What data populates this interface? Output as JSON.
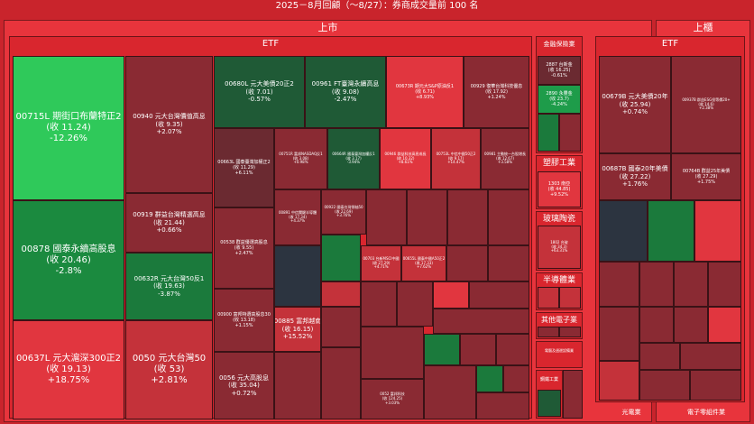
{
  "title": "2025－8月回顧（～8/27）：券商成交量前 100 名",
  "markets": {
    "listed": "上市",
    "otc": "上櫃"
  },
  "sectors": {
    "etf": "ETF",
    "etf2": "ETF",
    "finance": "金融保險業",
    "plastic": "塑膠工業",
    "glass": "玻璃陶瓷",
    "semi": "半導體業",
    "other_elec": "其他電子業",
    "computer": "電腦及週邊設備業",
    "steel": "鋼鐵工業",
    "optoelec": "光電業",
    "electronic_parts": "電子零組件業"
  },
  "big": [
    {
      "code": "00715L 期街口布蘭特正2",
      "close": "(收 11.24)",
      "chg": "-12.26%"
    },
    {
      "code": "00878 國泰永續高股息",
      "close": "(收 20.46)",
      "chg": "-2.8%"
    },
    {
      "code": "00637L 元大滬深300正2",
      "close": "(收 19.13)",
      "chg": "+18.75%"
    },
    {
      "code": "00940 元大台灣價值高息",
      "close": "(收 9.35)",
      "chg": "+2.07%"
    },
    {
      "code": "00919 群益台灣精選高息",
      "close": "(收 21.44)",
      "chg": "+0.66%"
    },
    {
      "code": "00632R 元大台灣50反1",
      "close": "(收 19.63)",
      "chg": "-3.87%"
    },
    {
      "code": "0050 元大台灣50",
      "close": "(收 53)",
      "chg": "+2.81%"
    },
    {
      "code": "00680L 元大美債20正2",
      "close": "(收 7.01)",
      "chg": "-0.57%"
    },
    {
      "code": "00961 FT臺灣永續高息",
      "close": "(收 9.08)",
      "chg": "-2.47%"
    },
    {
      "code": "00673R 期元大S&P原油反1",
      "close": "(收 6.71)",
      "chg": "+8.93%"
    },
    {
      "code": "00929 復華台灣科技優息",
      "close": "(收 17.92)",
      "chg": "+1.24%"
    },
    {
      "code": "00885 富邦越南",
      "close": "(收 16.15)",
      "chg": "+15.52%"
    },
    {
      "code": "0056 元大高股息",
      "close": "(收 35.04)",
      "chg": "+0.72%"
    },
    {
      "code": "00900 富邦特選高股息30",
      "close": "(收 13.18)",
      "chg": "+1.15%"
    },
    {
      "code": "00538 群益優選高股息",
      "close": "(收 9.55)",
      "chg": "+2.47%"
    },
    {
      "code": "00663L 國泰臺灣加權正2",
      "close": "(收 11.29)",
      "chg": "+6.11%"
    },
    {
      "code": "0052 富邦科技",
      "close": "(收 124.25)",
      "chg": "+3.03%"
    }
  ],
  "finance": [
    {
      "code": "2887 台新金",
      "close": "(收 16.25)",
      "chg": "-0.61%"
    },
    {
      "code": "2890 永豐金",
      "close": "(收 23.7)",
      "chg": "-4.24%"
    }
  ],
  "plastic": {
    "code": "1303 南亞",
    "close": "(收 44.85)",
    "chg": "+9.52%"
  },
  "glass": {
    "code": "1802 台玻",
    "close": "(收 34.3)",
    "chg": "+63.31%"
  },
  "otc": [
    {
      "code": "00679B 元大美債20年",
      "close": "(收 25.94)",
      "chg": "+0.74%"
    },
    {
      "code": "00937B 群益ESG投等債20+",
      "close": "(收 14.6)",
      "chg": "+2.38%"
    },
    {
      "code": "00687B 國泰20年美債",
      "close": "(收 27.22)",
      "chg": "+1.76%"
    },
    {
      "code": "00764B 群益25年美債",
      "close": "(收 27.29)",
      "chg": "+1.75%"
    }
  ],
  "small": [
    {
      "code": "00751R 富邦NASDAQ反1",
      "close": "(收 3.08)",
      "chg": "+0.98%"
    },
    {
      "code": "00664R 國泰臺灣加權反1",
      "close": "(收 3.17)",
      "chg": "-3.94%"
    },
    {
      "code": "00946 群益科技高息成長",
      "close": "(收 10.32)",
      "chg": "+8.61%"
    },
    {
      "code": "00753L 中信中國50正2",
      "close": "(收 9.17)",
      "chg": "+14.47%"
    },
    {
      "code": "00981 主動統一台股增長",
      "close": "(收 12.67)",
      "chg": "+3.58%"
    },
    {
      "code": "00891 中信關鍵半導體",
      "close": "(收 17.34)",
      "chg": "+4.37%"
    },
    {
      "code": "00922 國泰台灣領袖50",
      "close": "(收 22.69)",
      "chg": "+3.76%"
    },
    {
      "code": "00703 台新MSCI中國",
      "close": "(收 27.29)",
      "chg": "+4.71%"
    },
    {
      "code": "00655L 國泰中國A50正2",
      "close": "(收 17.33)",
      "chg": "+7.62%"
    },
    {
      "code": "00885 富邦越南",
      "close": "(收 16.15)",
      "chg": "+15.52%"
    }
  ]
}
